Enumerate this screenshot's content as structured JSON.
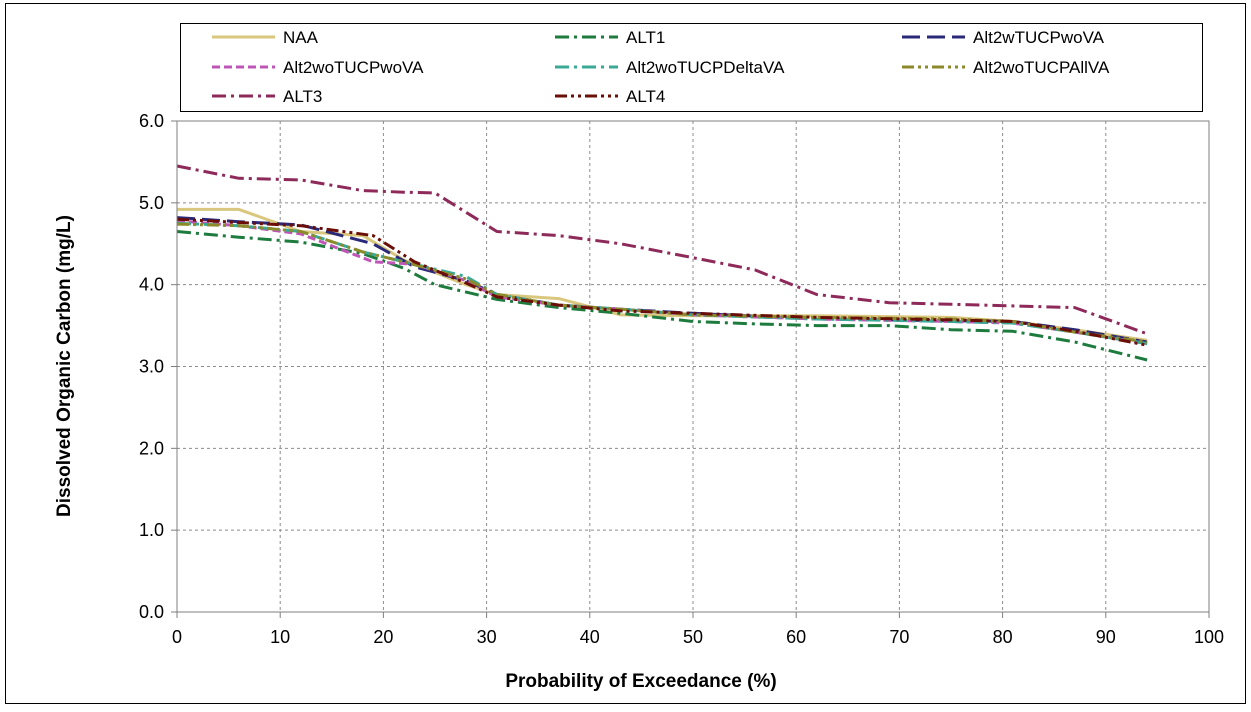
{
  "chart_data": {
    "type": "line",
    "title": "",
    "xlabel": "Probability of Exceedance (%)",
    "ylabel": "Dissolved Organic Carbon (mg/L)",
    "xlim": [
      0,
      100
    ],
    "ylim": [
      0,
      6
    ],
    "x_ticks": [
      "0",
      "10",
      "20",
      "30",
      "40",
      "50",
      "60",
      "70",
      "80",
      "90",
      "100"
    ],
    "y_ticks": [
      "0.0",
      "1.0",
      "2.0",
      "3.0",
      "4.0",
      "5.0",
      "6.0"
    ],
    "x_tick_values": [
      0,
      10,
      20,
      30,
      40,
      50,
      60,
      70,
      80,
      90,
      100
    ],
    "y_tick_values": [
      0,
      1,
      2,
      3,
      4,
      5,
      6
    ],
    "grid": true,
    "legend_position": "top",
    "series": [
      {
        "name": "NAA",
        "color": "#D9C77E",
        "dash": "solid",
        "points": [
          [
            0,
            4.92
          ],
          [
            6,
            4.92
          ],
          [
            12,
            4.65
          ],
          [
            18,
            4.6
          ],
          [
            22,
            4.3
          ],
          [
            28,
            4.0
          ],
          [
            31,
            3.88
          ],
          [
            37,
            3.83
          ],
          [
            43,
            3.63
          ],
          [
            50,
            3.62
          ],
          [
            62,
            3.62
          ],
          [
            75,
            3.6
          ],
          [
            81,
            3.55
          ],
          [
            87,
            3.45
          ],
          [
            94,
            3.32
          ]
        ]
      },
      {
        "name": "ALT1",
        "color": "#1E7B3E",
        "dash": "dash-dot",
        "points": [
          [
            0,
            4.65
          ],
          [
            6,
            4.58
          ],
          [
            12,
            4.52
          ],
          [
            18,
            4.38
          ],
          [
            22,
            4.2
          ],
          [
            25,
            4.0
          ],
          [
            31,
            3.82
          ],
          [
            37,
            3.72
          ],
          [
            43,
            3.65
          ],
          [
            50,
            3.55
          ],
          [
            56,
            3.52
          ],
          [
            62,
            3.5
          ],
          [
            69,
            3.5
          ],
          [
            75,
            3.45
          ],
          [
            81,
            3.43
          ],
          [
            87,
            3.3
          ],
          [
            94,
            3.08
          ]
        ]
      },
      {
        "name": "Alt2wTUCPwoVA",
        "color": "#2A2878",
        "dash": "long-dash",
        "points": [
          [
            0,
            4.82
          ],
          [
            6,
            4.77
          ],
          [
            12,
            4.73
          ],
          [
            19,
            4.5
          ],
          [
            23,
            4.22
          ],
          [
            28,
            4.05
          ],
          [
            31,
            3.88
          ],
          [
            37,
            3.75
          ],
          [
            43,
            3.7
          ],
          [
            50,
            3.65
          ],
          [
            62,
            3.58
          ],
          [
            75,
            3.56
          ],
          [
            81,
            3.55
          ],
          [
            87,
            3.45
          ],
          [
            94,
            3.3
          ]
        ]
      },
      {
        "name": "Alt2woTUCPwoVA",
        "color": "#C055B8",
        "dash": "short-dash",
        "points": [
          [
            0,
            4.78
          ],
          [
            6,
            4.72
          ],
          [
            12,
            4.62
          ],
          [
            19,
            4.28
          ],
          [
            23,
            4.25
          ],
          [
            28,
            4.05
          ],
          [
            31,
            3.85
          ],
          [
            37,
            3.75
          ],
          [
            43,
            3.7
          ],
          [
            50,
            3.63
          ],
          [
            62,
            3.58
          ],
          [
            75,
            3.55
          ],
          [
            81,
            3.53
          ],
          [
            87,
            3.42
          ],
          [
            94,
            3.28
          ]
        ]
      },
      {
        "name": "Alt2woTUCPDeltaVA",
        "color": "#3AAA96",
        "dash": "dash-dot",
        "points": [
          [
            0,
            4.75
          ],
          [
            6,
            4.72
          ],
          [
            12,
            4.65
          ],
          [
            18,
            4.4
          ],
          [
            22,
            4.28
          ],
          [
            28,
            4.1
          ],
          [
            31,
            3.88
          ],
          [
            37,
            3.75
          ],
          [
            43,
            3.7
          ],
          [
            50,
            3.63
          ],
          [
            62,
            3.58
          ],
          [
            75,
            3.55
          ],
          [
            81,
            3.53
          ],
          [
            87,
            3.42
          ],
          [
            94,
            3.28
          ]
        ]
      },
      {
        "name": "Alt2woTUCPAllVA",
        "color": "#8C8A2A",
        "dash": "dash-dot-dot",
        "points": [
          [
            0,
            4.74
          ],
          [
            6,
            4.72
          ],
          [
            12,
            4.65
          ],
          [
            18,
            4.4
          ],
          [
            22,
            4.28
          ],
          [
            28,
            4.07
          ],
          [
            31,
            3.88
          ],
          [
            37,
            3.75
          ],
          [
            43,
            3.7
          ],
          [
            50,
            3.63
          ],
          [
            62,
            3.6
          ],
          [
            75,
            3.58
          ],
          [
            81,
            3.55
          ],
          [
            87,
            3.42
          ],
          [
            94,
            3.3
          ]
        ]
      },
      {
        "name": "ALT3",
        "color": "#8E2A5A",
        "dash": "dash-dot",
        "points": [
          [
            0,
            5.45
          ],
          [
            6,
            5.3
          ],
          [
            12,
            5.28
          ],
          [
            18,
            5.15
          ],
          [
            22,
            5.13
          ],
          [
            25,
            5.12
          ],
          [
            31,
            4.65
          ],
          [
            37,
            4.6
          ],
          [
            43,
            4.5
          ],
          [
            50,
            4.33
          ],
          [
            56,
            4.18
          ],
          [
            62,
            3.88
          ],
          [
            69,
            3.78
          ],
          [
            75,
            3.76
          ],
          [
            81,
            3.74
          ],
          [
            87,
            3.72
          ],
          [
            94,
            3.4
          ]
        ]
      },
      {
        "name": "ALT4",
        "color": "#6B0E08",
        "dash": "dash-dot-dot",
        "points": [
          [
            0,
            4.8
          ],
          [
            6,
            4.76
          ],
          [
            12,
            4.72
          ],
          [
            19,
            4.6
          ],
          [
            23,
            4.28
          ],
          [
            28,
            4.02
          ],
          [
            31,
            3.85
          ],
          [
            37,
            3.75
          ],
          [
            43,
            3.68
          ],
          [
            50,
            3.65
          ],
          [
            62,
            3.6
          ],
          [
            75,
            3.57
          ],
          [
            81,
            3.55
          ],
          [
            87,
            3.43
          ],
          [
            94,
            3.26
          ]
        ]
      }
    ]
  }
}
